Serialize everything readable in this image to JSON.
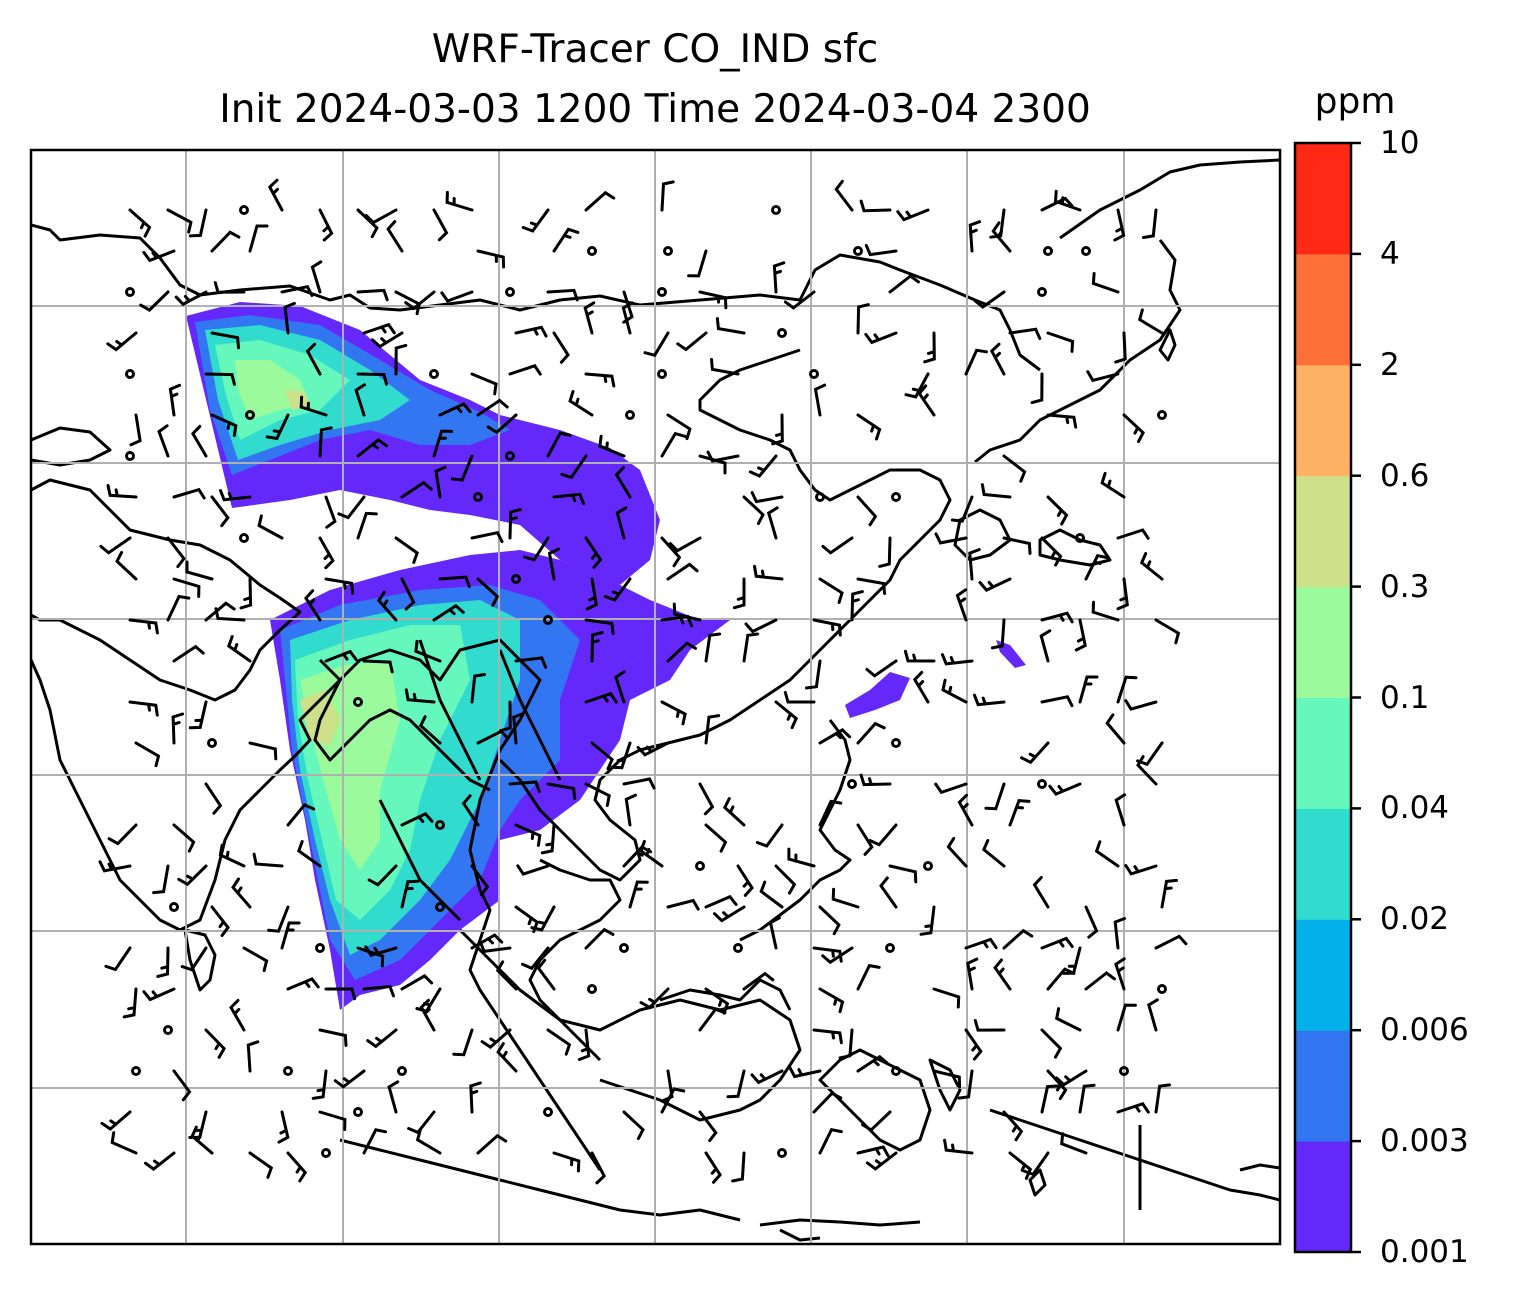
{
  "title_line1": "WRF-Tracer CO_IND sfc",
  "title_line2": "Init 2024-03-03 1200 Time 2024-03-04 2300",
  "colorbar": {
    "unit": "ppm",
    "ticks": [
      "0.001",
      "0.003",
      "0.006",
      "0.02",
      "0.04",
      "0.1",
      "0.3",
      "0.6",
      "2",
      "4",
      "10"
    ],
    "colors": [
      "#6528fb",
      "#3276f1",
      "#04b1ea",
      "#31dccf",
      "#66f7bd",
      "#9bfa9b",
      "#cfe08a",
      "#fdb266",
      "#ff7039",
      "#ff2916"
    ]
  },
  "map": {
    "grid": "on",
    "field": "CO_IND surface tracer concentration",
    "overlay": "wind barbs",
    "coastline_color": "#000000",
    "gridline_color": "#b0b0b0"
  }
}
